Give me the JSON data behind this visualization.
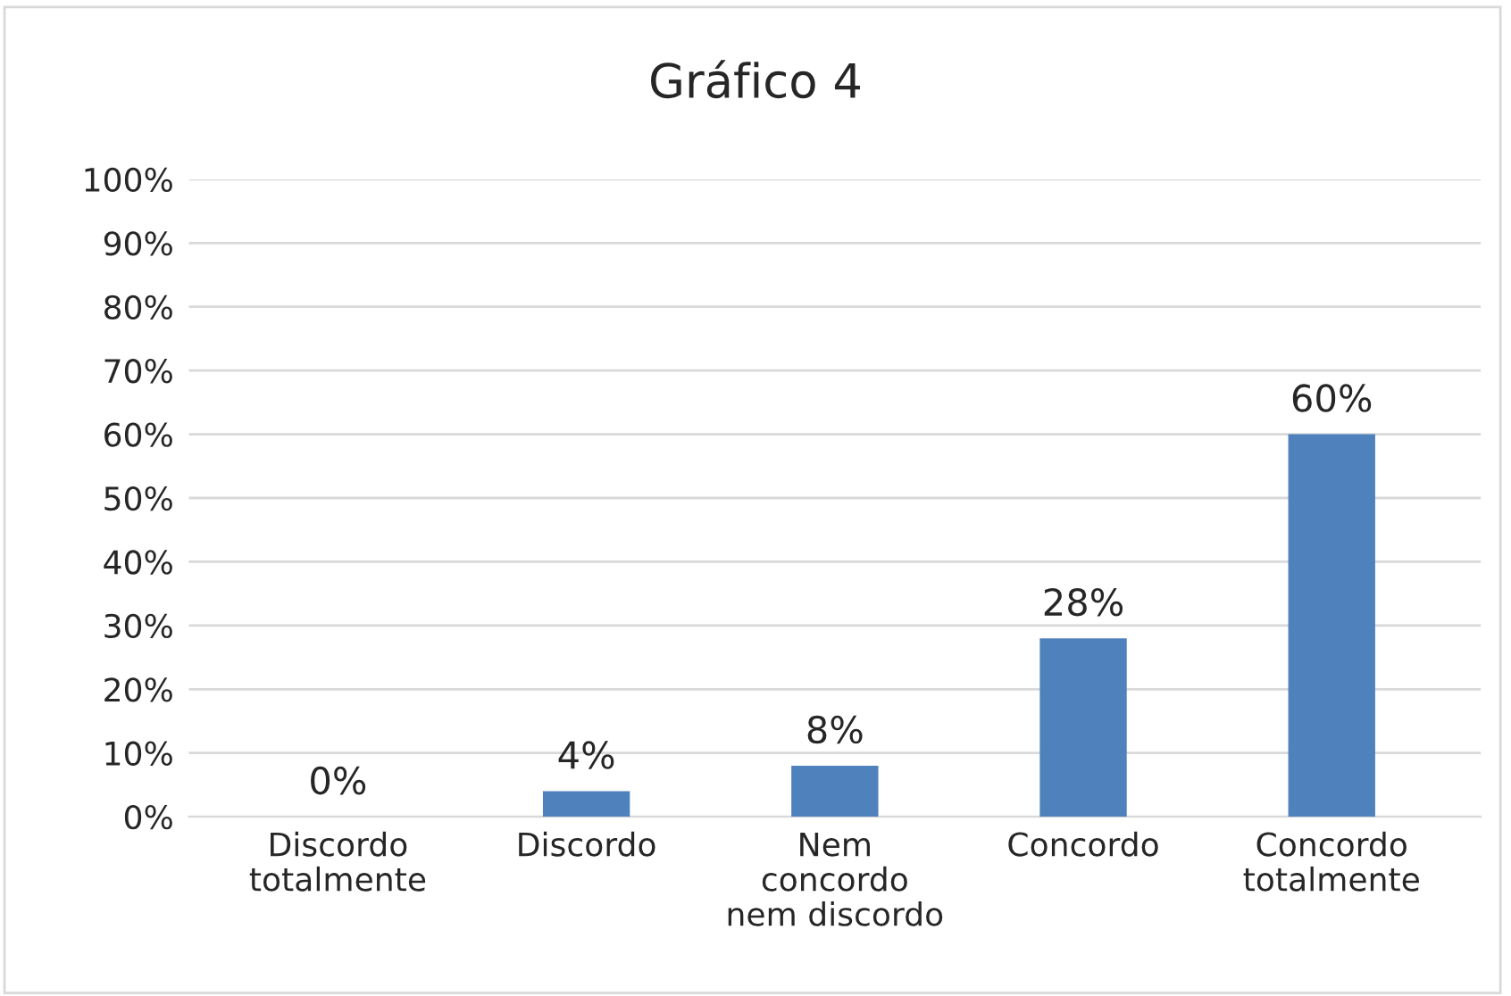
{
  "chart_data": {
    "type": "bar",
    "title": "Gráfico 4",
    "categories": [
      "Discordo\ntotalmente",
      "Discordo",
      "Nem\nconcordo\nnem discordo",
      "Concordo",
      "Concordo\ntotalmente"
    ],
    "values": [
      0,
      4,
      8,
      28,
      60
    ],
    "value_labels": [
      "0%",
      "4%",
      "8%",
      "28%",
      "60%"
    ],
    "color": "#4f81bd",
    "ylim": [
      0,
      100
    ],
    "yticks": [
      {
        "value": 0,
        "label": "0%"
      },
      {
        "value": 10,
        "label": "10%"
      },
      {
        "value": 20,
        "label": "20%"
      },
      {
        "value": 30,
        "label": "30%"
      },
      {
        "value": 40,
        "label": "40%"
      },
      {
        "value": 50,
        "label": "50%"
      },
      {
        "value": 60,
        "label": "60%"
      },
      {
        "value": 70,
        "label": "70%"
      },
      {
        "value": 80,
        "label": "80%"
      },
      {
        "value": 90,
        "label": "90%"
      },
      {
        "value": 100,
        "label": "100%"
      }
    ],
    "grid": "y",
    "legend": false
  }
}
